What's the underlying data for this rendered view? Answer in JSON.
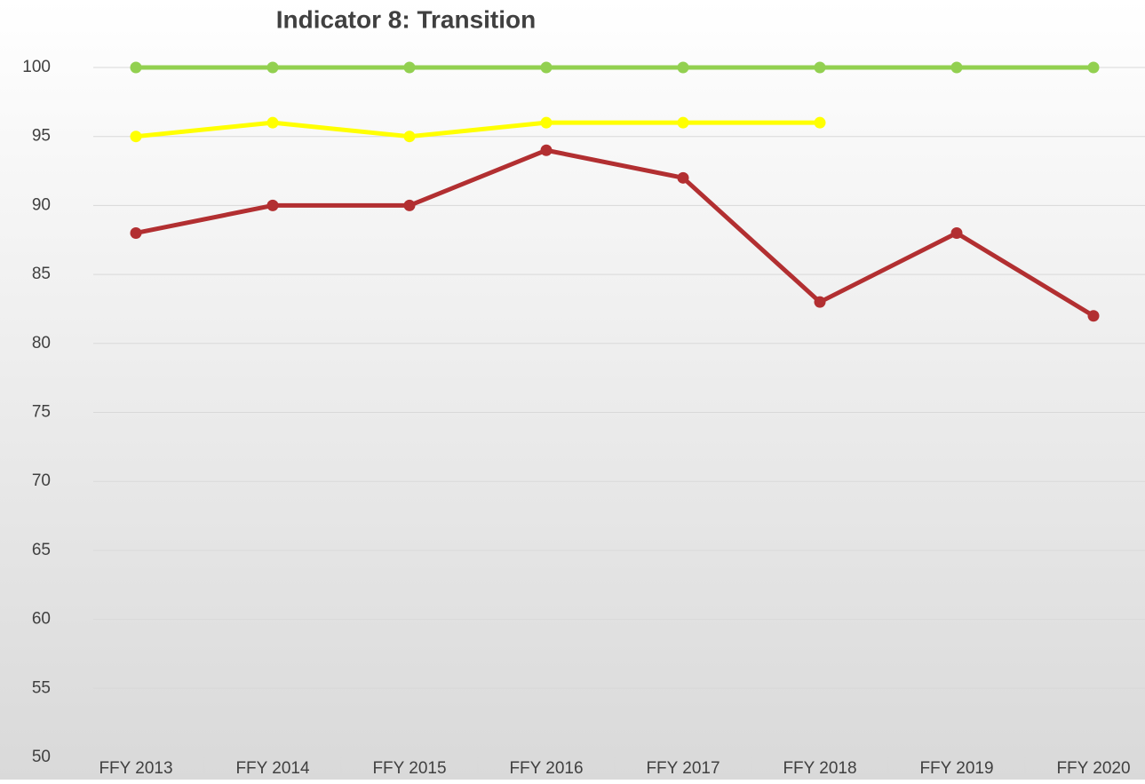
{
  "chart_data": {
    "type": "line",
    "title": "Indicator 8:  Transition",
    "categories": [
      "FFY 2013",
      "FFY 2014",
      "FFY 2015",
      "FFY 2016",
      "FFY 2017",
      "FFY 2018",
      "FFY 2019",
      "FFY 2020"
    ],
    "series": [
      {
        "color": "#92d050",
        "values": [
          100,
          100,
          100,
          100,
          100,
          100,
          100,
          100
        ]
      },
      {
        "color": "#ffff00",
        "values": [
          95,
          96,
          95,
          96,
          96,
          96,
          null,
          null
        ]
      },
      {
        "color": "#b22f31",
        "values": [
          88,
          90,
          90,
          94,
          92,
          83,
          88,
          82
        ]
      }
    ],
    "ylim": [
      50,
      100
    ],
    "yticks": [
      50,
      55,
      60,
      65,
      70,
      75,
      80,
      85,
      90,
      95,
      100
    ],
    "grid": true
  }
}
